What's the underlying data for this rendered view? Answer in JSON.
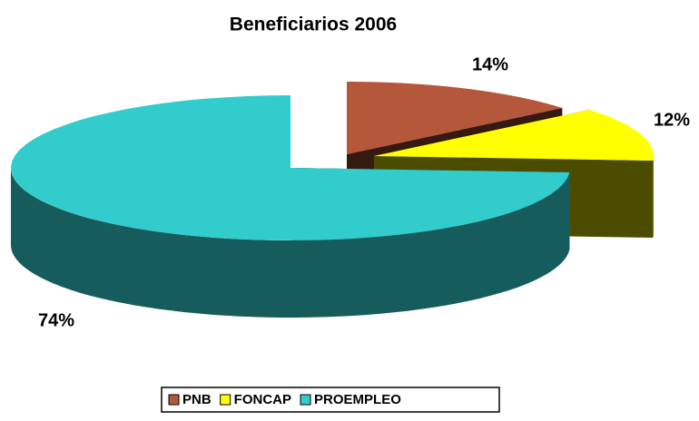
{
  "chart_data": {
    "type": "pie3d",
    "title": "Beneficiarios 2006",
    "categories": [
      "PNB",
      "FONCAP",
      "PROEMPLEO"
    ],
    "values": [
      14,
      12,
      74
    ],
    "value_labels": [
      "14%",
      "12%",
      "74%"
    ],
    "colors": [
      "#b5573a",
      "#ffff00",
      "#33cccc"
    ],
    "legend": "bottom"
  }
}
